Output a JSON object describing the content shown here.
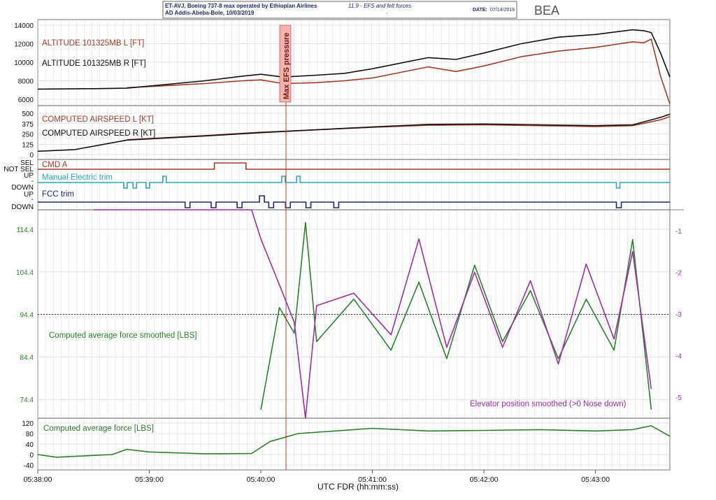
{
  "header": {
    "aircraft_line1": "ET-AVJ, Boeing 737-8 max operated by Ethiopian Airlines",
    "aircraft_line2": "AD Addis-Abeba-Bole, 10/03/2019",
    "figure_title": "11.9 - EFS and felt forces",
    "date_label": "DATE:",
    "date_value": "07/14/2019",
    "logo_text": "BEA",
    "dash": "-"
  },
  "x_axis": {
    "label": "UTC FDR (hh:mm:ss)",
    "ticks": [
      "05:38:00",
      "05:39:00",
      "05:40:00",
      "05:41:00",
      "05:42:00",
      "05:43:00"
    ]
  },
  "annotation": {
    "max_efs": "Max EFS pressure"
  },
  "colors": {
    "red": "#a33a2a",
    "black": "#111111",
    "cyan": "#2aa7b8",
    "navy": "#1c2a6b",
    "green": "#2d7f2d",
    "purple": "#9b2fa6",
    "grid": "#c9c9c9"
  },
  "chart_data": [
    {
      "type": "line",
      "title": "",
      "ylim": [
        6000,
        14000
      ],
      "yticks": [
        "14000",
        "12000",
        "10000",
        "8000",
        "6000"
      ],
      "x": [
        "05:38:00",
        "05:38:30",
        "05:38:48",
        "05:39:30",
        "05:39:50",
        "05:40:00",
        "05:40:12",
        "05:40:30",
        "05:40:45",
        "05:41:00",
        "05:41:15",
        "05:41:30",
        "05:41:45",
        "05:42:00",
        "05:42:20",
        "05:42:40",
        "05:43:00",
        "05:43:20",
        "05:43:26",
        "05:43:30",
        "05:43:35",
        "05:43:40"
      ],
      "series": [
        {
          "name": "ALTITUDE 101325MB L [FT]",
          "color": "red",
          "values": [
            null,
            null,
            7250,
            7700,
            8000,
            8100,
            7700,
            7800,
            8000,
            8300,
            8900,
            9500,
            9000,
            9600,
            10600,
            11200,
            11600,
            12200,
            12100,
            12500,
            8500,
            5500
          ]
        },
        {
          "name": "ALTITUDE 101325MB R [FT]",
          "color": "black",
          "values": [
            7100,
            7150,
            7200,
            8000,
            8500,
            8700,
            8400,
            8600,
            8800,
            9300,
            9900,
            10500,
            10300,
            11000,
            12000,
            12700,
            13000,
            13500,
            13400,
            13200,
            11000,
            8400
          ]
        }
      ]
    },
    {
      "type": "line",
      "title": "",
      "ylim": [
        0,
        500
      ],
      "yticks": [
        "500",
        "375",
        "250",
        "125",
        "0"
      ],
      "x": [
        "05:38:00",
        "05:38:20",
        "05:38:48",
        "05:39:30",
        "05:40:00",
        "05:40:30",
        "05:41:00",
        "05:41:30",
        "05:42:00",
        "05:42:30",
        "05:43:00",
        "05:43:20",
        "05:43:35",
        "05:43:40"
      ],
      "series": [
        {
          "name": "COMPUTED AIRSPEED L [KT]",
          "color": "red",
          "values": [
            null,
            null,
            180,
            230,
            270,
            300,
            330,
            355,
            360,
            350,
            340,
            350,
            420,
            460
          ]
        },
        {
          "name": "COMPUTED AIRSPEED R [KT]",
          "color": "black",
          "values": [
            40,
            60,
            175,
            225,
            265,
            300,
            335,
            365,
            370,
            360,
            350,
            360,
            450,
            490
          ]
        }
      ]
    },
    {
      "type": "line",
      "title": "",
      "ylabels_left": [
        "SEL",
        "NOT SEL",
        "UP",
        "-",
        "DOWN",
        "UP",
        "-",
        "DOWN"
      ],
      "series": [
        {
          "name": "CMD A",
          "color": "red",
          "states": [
            [
              "05:38:00",
              "NOT SEL"
            ],
            [
              "05:39:35",
              "SEL"
            ],
            [
              "05:39:52",
              "NOT SEL"
            ],
            [
              "05:43:40",
              "NOT SEL"
            ]
          ]
        },
        {
          "name": "Manual Electric trim",
          "color": "cyan",
          "events": [
            [
              "05:38:47",
              "DOWN"
            ],
            [
              "05:38:52",
              "DOWN"
            ],
            [
              "05:38:59",
              "DOWN"
            ],
            [
              "05:39:08",
              "UP"
            ],
            [
              "05:40:12",
              "UP"
            ],
            [
              "05:40:20",
              "UP"
            ],
            [
              "05:43:12",
              "DOWN"
            ]
          ]
        },
        {
          "name": "FCC trim",
          "color": "navy",
          "events": [
            [
              "05:39:20",
              "DOWN"
            ],
            [
              "05:39:34",
              "DOWN"
            ],
            [
              "05:39:48",
              "DOWN"
            ],
            [
              "05:40:00",
              "UP"
            ],
            [
              "05:40:05",
              "DOWN"
            ],
            [
              "05:40:14",
              "DOWN"
            ],
            [
              "05:40:25",
              "DOWN"
            ],
            [
              "05:40:40",
              "DOWN"
            ],
            [
              "05:43:12",
              "DOWN"
            ]
          ]
        }
      ]
    },
    {
      "type": "line",
      "title": "",
      "ylim_left": [
        70,
        119
      ],
      "yticks_left": [
        "114.4",
        "104.4",
        "94.4",
        "84.4",
        "74.4"
      ],
      "ylim_right": [
        -5.5,
        -0.5
      ],
      "yticks_right": [
        "-1",
        "-2",
        "-3",
        "-4",
        "-5"
      ],
      "reference_line": 94.4,
      "x": [
        "05:38:00",
        "05:38:30",
        "05:39:55",
        "05:40:00",
        "05:40:10",
        "05:40:18",
        "05:40:24",
        "05:40:30",
        "05:40:50",
        "05:41:10",
        "05:41:25",
        "05:41:40",
        "05:41:55",
        "05:42:10",
        "05:42:25",
        "05:42:40",
        "05:42:55",
        "05:43:10",
        "05:43:20",
        "05:43:30"
      ],
      "series": [
        {
          "name": "Computed average force smoothed [LBS]",
          "color": "green",
          "axis": "left",
          "values": [
            null,
            null,
            null,
            72,
            96,
            90,
            116,
            88,
            98,
            86,
            102,
            84,
            106,
            88,
            100,
            84,
            98,
            86,
            112,
            72
          ]
        },
        {
          "name": "Elevator position smoothed (>0 Nose down)",
          "color": "purple",
          "axis": "right",
          "values": [
            null,
            -0.5,
            -0.5,
            -1.2,
            -2.3,
            -3.2,
            -5.5,
            -2.8,
            -2.5,
            -3.5,
            -1.2,
            -3.8,
            -2.0,
            -3.8,
            -2.2,
            -4.2,
            -1.8,
            -3.6,
            -1.5,
            -4.8
          ]
        }
      ]
    },
    {
      "type": "line",
      "title": "",
      "ylim": [
        -40,
        120
      ],
      "yticks": [
        "120",
        "80",
        "40",
        "0",
        "-40"
      ],
      "x": [
        "05:38:00",
        "05:38:10",
        "05:38:40",
        "05:38:48",
        "05:39:00",
        "05:39:30",
        "05:39:55",
        "05:40:05",
        "05:40:20",
        "05:41:00",
        "05:41:30",
        "05:42:00",
        "05:42:30",
        "05:43:00",
        "05:43:20",
        "05:43:30",
        "05:43:40"
      ],
      "series": [
        {
          "name": "Computed average force [LBS]",
          "color": "green",
          "values": [
            0,
            -10,
            0,
            20,
            10,
            3,
            4,
            50,
            80,
            100,
            90,
            92,
            95,
            90,
            95,
            110,
            70
          ]
        }
      ]
    }
  ],
  "labels": {
    "p1_alt_l": "ALTITUDE 101325MB L [FT]",
    "p1_alt_r": "ALTITUDE 101325MB R [FT]",
    "p2_cas_l": "COMPUTED AIRSPEED L [KT]",
    "p2_cas_r": "COMPUTED AIRSPEED R [KT]",
    "p3_cmd": "CMD A",
    "p3_met": "Manual Electric trim",
    "p3_fcc": "FCC trim",
    "p4_force": "Computed average force smoothed [LBS]",
    "p4_elev": "Elevator position smoothed (>0 Nose down)",
    "p5_force": "Computed average force [LBS]"
  }
}
